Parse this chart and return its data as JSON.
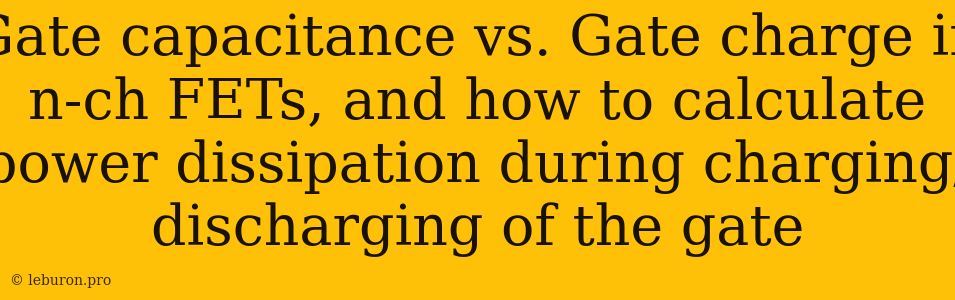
{
  "background_color": "#FFC107",
  "text_color": "#1a1200",
  "title_lines": [
    "Gate capacitance vs. Gate charge in",
    "n-ch FETs, and how to calculate",
    "power dissipation during charging/",
    "discharging of the gate"
  ],
  "title_fontsize": 40,
  "title_font_family": "DejaVu Serif",
  "watermark": "© leburon.pro",
  "watermark_fontsize": 10,
  "watermark_color": "#3a2800",
  "fig_width": 9.55,
  "fig_height": 3.0,
  "dpi": 100
}
